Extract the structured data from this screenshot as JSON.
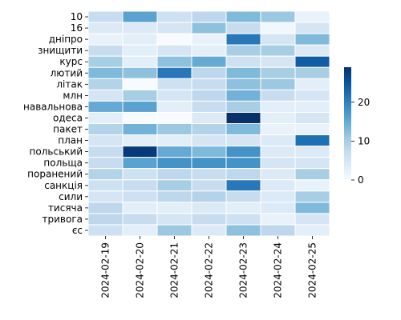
{
  "chart_data": {
    "type": "heatmap",
    "title": "",
    "xlabel": "",
    "ylabel": "",
    "x": [
      "2024-02-19",
      "2024-02-20",
      "2024-02-21",
      "2024-02-22",
      "2024-02-23",
      "2024-02-24",
      "2024-02-25"
    ],
    "y": [
      "10",
      "16",
      "дніпро",
      "знищити",
      "курс",
      "лютий",
      "літак",
      "млн",
      "навальнова",
      "одеса",
      "пакет",
      "план",
      "польський",
      "польща",
      "поранений",
      "санкція",
      "сили",
      "тисяча",
      "тривога",
      "єс"
    ],
    "values": [
      [
        7,
        16,
        6,
        8,
        13,
        11,
        2
      ],
      [
        4,
        4,
        5,
        12,
        7,
        1,
        5
      ],
      [
        2,
        3,
        0,
        2,
        21,
        5,
        13
      ],
      [
        7,
        3,
        5,
        3,
        10,
        10,
        4
      ],
      [
        10,
        3,
        12,
        15,
        6,
        5,
        24
      ],
      [
        13,
        12,
        21,
        8,
        13,
        10,
        10
      ],
      [
        9,
        0,
        6,
        7,
        12,
        11,
        3
      ],
      [
        5,
        10,
        5,
        8,
        14,
        7,
        5
      ],
      [
        15,
        16,
        3,
        7,
        10,
        3,
        3
      ],
      [
        3,
        0,
        0,
        4,
        29,
        3,
        5
      ],
      [
        9,
        14,
        11,
        9,
        13,
        2,
        2
      ],
      [
        5,
        3,
        3,
        5,
        5,
        4,
        22
      ],
      [
        7,
        28,
        15,
        13,
        18,
        4,
        4
      ],
      [
        7,
        16,
        18,
        18,
        18,
        5,
        5
      ],
      [
        9,
        6,
        8,
        7,
        8,
        4,
        10
      ],
      [
        6,
        7,
        10,
        7,
        21,
        4,
        2
      ],
      [
        5,
        6,
        8,
        9,
        7,
        4,
        10
      ],
      [
        8,
        3,
        3,
        4,
        3,
        4,
        13
      ],
      [
        8,
        7,
        5,
        7,
        6,
        2,
        5
      ],
      [
        6,
        3,
        11,
        4,
        12,
        8,
        3
      ]
    ],
    "zlim": [
      0,
      29
    ],
    "colorbar": {
      "ticks": [
        0,
        10,
        20
      ]
    },
    "colormap": "Blues",
    "gridlines": "white"
  }
}
